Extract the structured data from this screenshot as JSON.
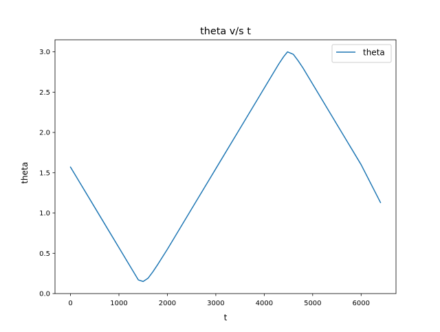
{
  "chart_data": {
    "type": "line",
    "title": "theta v/s t",
    "xlabel": "t",
    "ylabel": "theta",
    "xlim": [
      -320,
      6720
    ],
    "ylim": [
      0.0,
      3.15
    ],
    "x_ticks": [
      0,
      1000,
      2000,
      3000,
      4000,
      5000,
      6000
    ],
    "y_ticks": [
      0.0,
      0.5,
      1.0,
      1.5,
      2.0,
      2.5,
      3.0
    ],
    "x_tick_labels": [
      "0",
      "1000",
      "2000",
      "3000",
      "4000",
      "5000",
      "6000"
    ],
    "y_tick_labels": [
      "0.0",
      "0.5",
      "1.0",
      "1.5",
      "2.0",
      "2.5",
      "3.0"
    ],
    "grid": false,
    "legend_position": "top-right",
    "series": [
      {
        "name": "theta",
        "color": "#1f77b4",
        "x": [
          0,
          200,
          400,
          600,
          800,
          1000,
          1200,
          1300,
          1400,
          1500,
          1600,
          1700,
          1800,
          2000,
          2500,
          3000,
          3500,
          4000,
          4200,
          4300,
          4400,
          4480,
          4600,
          4700,
          4800,
          5000,
          5500,
          6000,
          6400
        ],
        "values": [
          1.57,
          1.37,
          1.17,
          0.97,
          0.77,
          0.57,
          0.37,
          0.27,
          0.17,
          0.15,
          0.19,
          0.27,
          0.36,
          0.55,
          1.05,
          1.55,
          2.05,
          2.55,
          2.75,
          2.85,
          2.94,
          3.0,
          2.97,
          2.89,
          2.8,
          2.6,
          2.1,
          1.6,
          1.13
        ]
      }
    ]
  }
}
